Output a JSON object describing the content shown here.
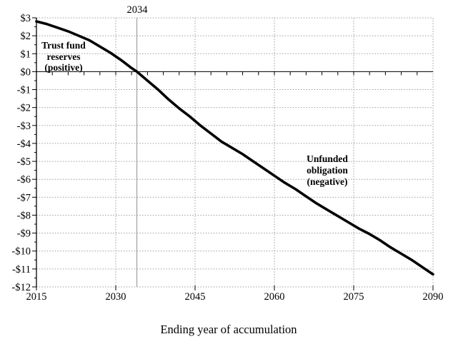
{
  "chart_data": {
    "type": "line",
    "xlabel": "Ending year of accumulation",
    "ylabel": "",
    "xlim": [
      2015,
      2090
    ],
    "ylim": [
      -12,
      3
    ],
    "grid": true,
    "x_ticks": [
      2015,
      2030,
      2045,
      2060,
      2075,
      2090
    ],
    "x_minor_tick_step_years": 3,
    "y_ticks": [
      "$3",
      "$2",
      "$1",
      "$0",
      "-$1",
      "-$2",
      "-$3",
      "-$4",
      "-$5",
      "-$6",
      "-$7",
      "-$8",
      "-$9",
      "-$10",
      "-$11",
      "-$12"
    ],
    "y_tick_values": [
      3,
      2,
      1,
      0,
      -1,
      -2,
      -3,
      -4,
      -5,
      -6,
      -7,
      -8,
      -9,
      -10,
      -11,
      -12
    ],
    "y_minor_tick_step": 0.5,
    "reference_line": {
      "x": 2034,
      "label": "2034"
    },
    "series": [
      {
        "points": [
          [
            2015,
            2.8
          ],
          [
            2017,
            2.65
          ],
          [
            2019,
            2.45
          ],
          [
            2021,
            2.25
          ],
          [
            2023,
            2.0
          ],
          [
            2025,
            1.75
          ],
          [
            2027,
            1.4
          ],
          [
            2029,
            1.05
          ],
          [
            2031,
            0.65
          ],
          [
            2033,
            0.2
          ],
          [
            2034,
            0.0
          ],
          [
            2036,
            -0.5
          ],
          [
            2038,
            -1.0
          ],
          [
            2040,
            -1.55
          ],
          [
            2042,
            -2.05
          ],
          [
            2044,
            -2.5
          ],
          [
            2046,
            -3.0
          ],
          [
            2048,
            -3.45
          ],
          [
            2050,
            -3.9
          ],
          [
            2052,
            -4.25
          ],
          [
            2054,
            -4.6
          ],
          [
            2056,
            -5.0
          ],
          [
            2058,
            -5.4
          ],
          [
            2060,
            -5.8
          ],
          [
            2062,
            -6.2
          ],
          [
            2064,
            -6.55
          ],
          [
            2066,
            -6.95
          ],
          [
            2068,
            -7.35
          ],
          [
            2070,
            -7.7
          ],
          [
            2072,
            -8.05
          ],
          [
            2074,
            -8.4
          ],
          [
            2076,
            -8.75
          ],
          [
            2078,
            -9.05
          ],
          [
            2080,
            -9.4
          ],
          [
            2082,
            -9.8
          ],
          [
            2084,
            -10.15
          ],
          [
            2086,
            -10.5
          ],
          [
            2088,
            -10.9
          ],
          [
            2090,
            -11.3
          ]
        ]
      }
    ]
  },
  "annotations": {
    "trust_fund": [
      "Trust fund",
      "reserves",
      "(positive)"
    ],
    "unfunded": [
      "Unfunded",
      "obligation",
      "(negative)"
    ]
  },
  "colors": {
    "curve": "#000000",
    "gridline": "#9c9c9c",
    "reference_line": "#8f8f8f",
    "background": "#ffffff"
  }
}
